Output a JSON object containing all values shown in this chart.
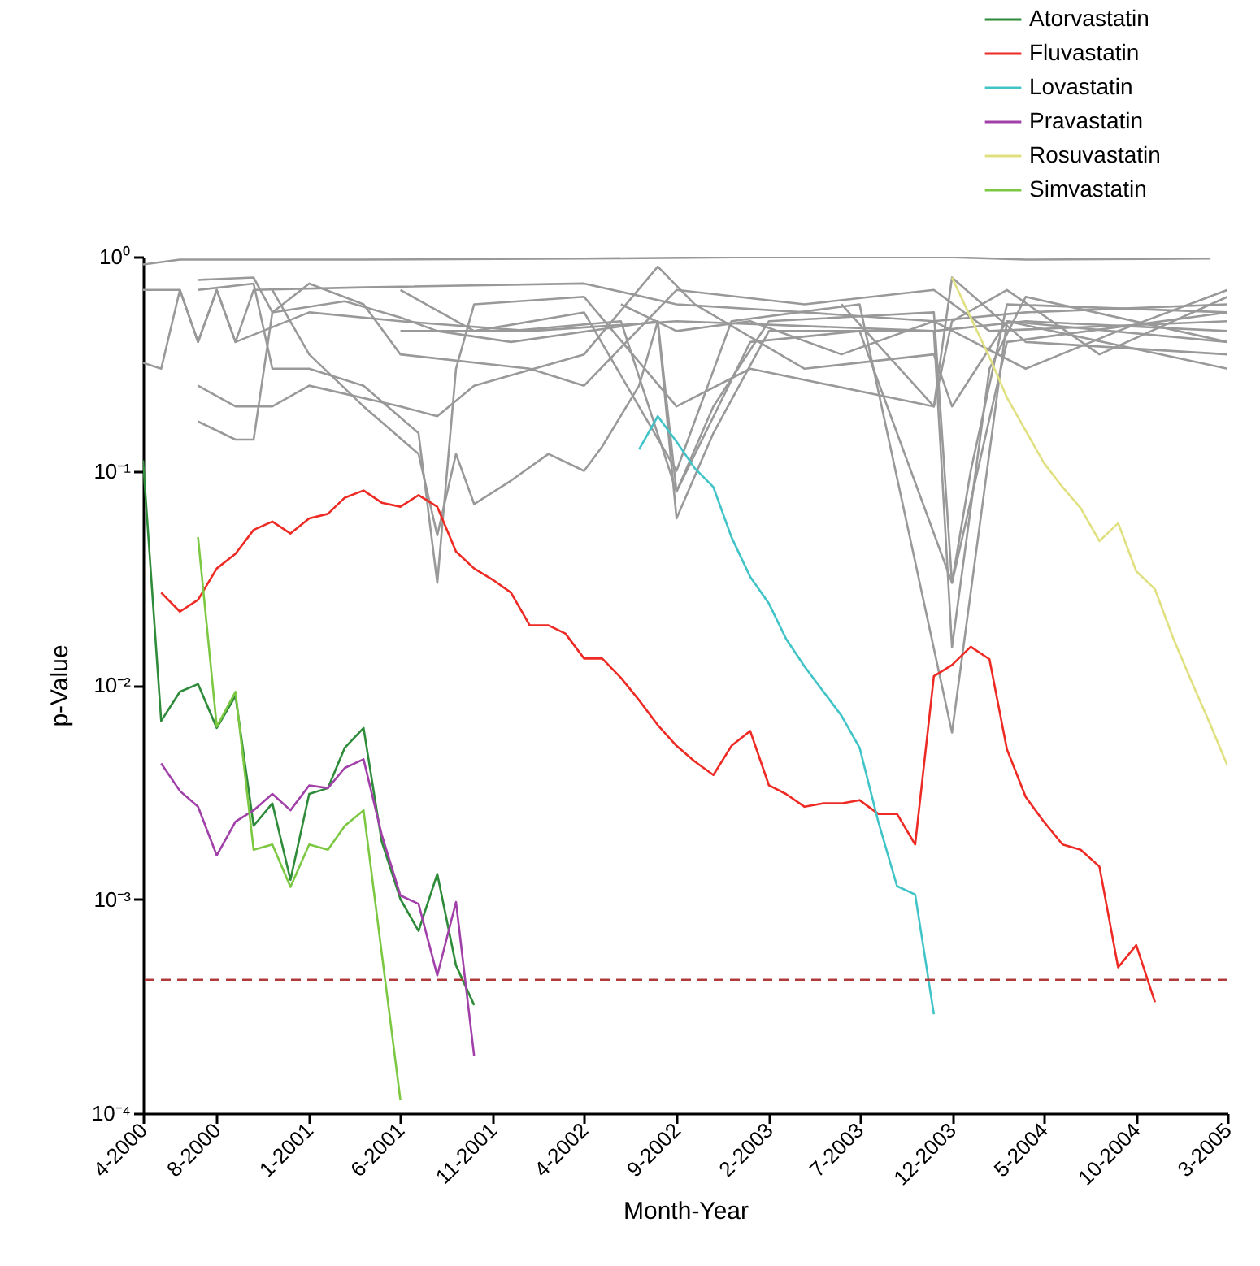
{
  "chart_data": {
    "type": "line",
    "xlabel": "Month-Year",
    "ylabel": "p-Value",
    "log": true,
    "grid": false,
    "legend": "top right",
    "marker": "none",
    "line_style": "solid",
    "xlim": [
      "2000-04",
      "2005-03"
    ],
    "xticks": [
      {
        "value": "2000-04",
        "label": "4-2000"
      },
      {
        "value": "2000-08",
        "label": "8-2000"
      },
      {
        "value": "2001-01",
        "label": "1-2001"
      },
      {
        "value": "2001-06",
        "label": "6-2001"
      },
      {
        "value": "2001-11",
        "label": "11-2001"
      },
      {
        "value": "2002-04",
        "label": "4-2002"
      },
      {
        "value": "2002-09",
        "label": "9-2002"
      },
      {
        "value": "2003-02",
        "label": "2-2003"
      },
      {
        "value": "2003-07",
        "label": "7-2003"
      },
      {
        "value": "2003-12",
        "label": "12-2003"
      },
      {
        "value": "2004-05",
        "label": "5-2004"
      },
      {
        "value": "2004-10",
        "label": "10-2004"
      },
      {
        "value": "2005-03",
        "label": "3-2005"
      }
    ],
    "ylim": [
      0.0001,
      1
    ],
    "yticks": [
      {
        "value": 0.0001,
        "label": "10⁻⁴"
      },
      {
        "value": 0.001,
        "label": "10⁻³"
      },
      {
        "value": 0.01,
        "label": "10⁻²"
      },
      {
        "value": 0.1,
        "label": "10⁻¹"
      },
      {
        "value": 1,
        "label": "10⁰"
      }
    ],
    "ref_lines": [
      {
        "axis": "y",
        "value": 0.00042,
        "color": "#b03a3a",
        "line_style": "dashed"
      }
    ],
    "series": [
      {
        "color": "#999999",
        "x": [
          "2000-04",
          "2000-06",
          "2001-04",
          "2002-04",
          "2003-04",
          "2003-11",
          "2004-04",
          "2005-02"
        ],
        "values": [
          0.92,
          0.97,
          0.97,
          0.98,
          1.0,
          1.0,
          0.97,
          0.98
        ]
      },
      {
        "color": "#999999",
        "x": [
          "2000-04",
          "2000-06",
          "2000-07",
          "2000-08",
          "2000-09",
          "2000-10",
          "2001-04",
          "2002-04",
          "2002-09",
          "2003-04",
          "2003-11",
          "2004-04",
          "2005-03"
        ],
        "values": [
          0.7,
          0.7,
          0.4,
          0.7,
          0.4,
          0.7,
          0.72,
          0.75,
          0.6,
          0.55,
          0.5,
          0.55,
          0.6
        ]
      },
      {
        "color": "#999999",
        "x": [
          "2000-04",
          "2000-05",
          "2000-06",
          "2000-07",
          "2000-08",
          "2000-09",
          "2001-01",
          "2001-06",
          "2002-01",
          "2002-09",
          "2003-11",
          "2004-04",
          "2005-03"
        ],
        "values": [
          0.32,
          0.3,
          0.7,
          0.4,
          0.7,
          0.4,
          0.55,
          0.5,
          0.45,
          0.5,
          0.45,
          0.5,
          0.45
        ]
      },
      {
        "color": "#999999",
        "x": [
          "2000-07",
          "2000-10",
          "2000-11",
          "2001-01",
          "2001-04",
          "2001-06",
          "2002-01",
          "2002-04",
          "2002-09",
          "2003-04",
          "2003-11",
          "2004-02",
          "2005-03"
        ],
        "values": [
          0.78,
          0.8,
          0.55,
          0.75,
          0.6,
          0.35,
          0.3,
          0.25,
          0.7,
          0.6,
          0.7,
          0.45,
          0.5
        ]
      },
      {
        "color": "#999999",
        "x": [
          "2000-07",
          "2000-10",
          "2000-11",
          "2001-01",
          "2001-04",
          "2001-07",
          "2001-08",
          "2001-09",
          "2001-10",
          "2002-04",
          "2002-09",
          "2003-01",
          "2003-11",
          "2003-12",
          "2004-04",
          "2005-03"
        ],
        "values": [
          0.7,
          0.75,
          0.3,
          0.3,
          0.25,
          0.15,
          0.03,
          0.3,
          0.6,
          0.65,
          0.2,
          0.3,
          0.2,
          0.8,
          0.4,
          0.35
        ]
      },
      {
        "color": "#999999",
        "x": [
          "2000-07",
          "2000-09",
          "2000-11",
          "2001-01",
          "2001-06",
          "2001-08",
          "2001-10",
          "2002-04",
          "2002-08",
          "2002-10",
          "2003-04",
          "2003-11",
          "2003-12",
          "2004-03",
          "2005-03"
        ],
        "values": [
          0.25,
          0.2,
          0.2,
          0.25,
          0.2,
          0.18,
          0.25,
          0.35,
          0.9,
          0.6,
          0.3,
          0.35,
          0.2,
          0.5,
          0.3
        ]
      },
      {
        "color": "#999999",
        "x": [
          "2000-07",
          "2000-09",
          "2000-10",
          "2000-11",
          "2001-03",
          "2001-06",
          "2001-08",
          "2001-12",
          "2002-08",
          "2002-09",
          "2002-11",
          "2003-02",
          "2003-11",
          "2003-12",
          "2004-01",
          "2004-03",
          "2005-03"
        ],
        "values": [
          0.17,
          0.14,
          0.14,
          0.55,
          0.62,
          0.52,
          0.45,
          0.4,
          0.5,
          0.08,
          0.2,
          0.5,
          0.55,
          0.03,
          0.1,
          0.6,
          0.55
        ]
      },
      {
        "color": "#999999",
        "x": [
          "2000-11",
          "2001-01",
          "2001-04",
          "2001-07",
          "2001-08",
          "2001-09",
          "2001-10",
          "2001-12",
          "2002-02",
          "2002-04",
          "2002-05",
          "2002-07",
          "2002-08",
          "2002-09",
          "2002-11",
          "2003-02",
          "2003-11",
          "2003-12",
          "2004-02",
          "2004-04",
          "2005-03"
        ],
        "values": [
          0.7,
          0.35,
          0.2,
          0.12,
          0.05,
          0.12,
          0.07,
          0.09,
          0.12,
          0.1,
          0.13,
          0.25,
          0.5,
          0.06,
          0.15,
          0.45,
          0.45,
          0.015,
          0.3,
          0.65,
          0.4
        ]
      },
      {
        "color": "#999999",
        "x": [
          "2001-06",
          "2001-10",
          "2002-04",
          "2002-09",
          "2002-12",
          "2003-07",
          "2003-12",
          "2004-03",
          "2005-03"
        ],
        "values": [
          0.7,
          0.45,
          0.55,
          0.1,
          0.5,
          0.6,
          0.006,
          0.5,
          0.4
        ]
      },
      {
        "color": "#999999",
        "x": [
          "2001-06",
          "2001-12",
          "2002-06",
          "2002-09",
          "2003-01",
          "2003-07",
          "2003-12",
          "2004-03",
          "2005-03"
        ],
        "values": [
          0.45,
          0.45,
          0.5,
          0.08,
          0.4,
          0.45,
          0.03,
          0.4,
          0.55
        ]
      },
      {
        "color": "#999999",
        "x": [
          "2002-06",
          "2002-09",
          "2003-01",
          "2003-06",
          "2003-11",
          "2004-04",
          "2004-09",
          "2005-03"
        ],
        "values": [
          0.6,
          0.45,
          0.5,
          0.35,
          0.5,
          0.3,
          0.45,
          0.7
        ]
      },
      {
        "color": "#999999",
        "x": [
          "2003-06",
          "2003-11",
          "2003-12",
          "2004-03",
          "2004-08",
          "2005-03"
        ],
        "values": [
          0.6,
          0.2,
          0.5,
          0.7,
          0.35,
          0.65
        ]
      },
      {
        "name": "Atorvastatin",
        "color": "#2e8b3a",
        "x": [
          "2000-04",
          "2000-05",
          "2000-06",
          "2000-07",
          "2000-08",
          "2000-09",
          "2000-10",
          "2000-11",
          "2000-12",
          "2001-01",
          "2001-02",
          "2001-03",
          "2001-04",
          "2001-05",
          "2001-06",
          "2001-07",
          "2001-08",
          "2001-09",
          "2001-10"
        ],
        "values": [
          0.112,
          0.0068,
          0.0093,
          0.0101,
          0.0063,
          0.0089,
          0.0022,
          0.0028,
          0.00123,
          0.0031,
          0.0033,
          0.0051,
          0.0063,
          0.00186,
          0.001,
          0.00071,
          0.00131,
          0.00049,
          0.00032
        ]
      },
      {
        "name": "Fluvastatin",
        "color": "#ee2a24",
        "x": [
          "2000-05",
          "2000-06",
          "2000-07",
          "2000-08",
          "2000-09",
          "2000-10",
          "2000-11",
          "2000-12",
          "2001-01",
          "2001-02",
          "2001-03",
          "2001-04",
          "2001-05",
          "2001-06",
          "2001-07",
          "2001-08",
          "2001-09",
          "2001-10",
          "2001-11",
          "2001-12",
          "2002-01",
          "2002-02",
          "2002-03",
          "2002-04",
          "2002-05",
          "2002-06",
          "2002-07",
          "2002-08",
          "2002-09",
          "2002-10",
          "2002-11",
          "2002-12",
          "2003-01",
          "2003-02",
          "2003-03",
          "2003-04",
          "2003-05",
          "2003-06",
          "2003-07",
          "2003-08",
          "2003-09",
          "2003-10",
          "2003-11",
          "2003-12",
          "2004-01",
          "2004-02",
          "2004-03",
          "2004-04",
          "2004-05",
          "2004-06",
          "2004-07",
          "2004-08",
          "2004-09",
          "2004-10",
          "2004-11"
        ],
        "values": [
          0.027,
          0.022,
          0.025,
          0.035,
          0.041,
          0.053,
          0.058,
          0.051,
          0.06,
          0.063,
          0.075,
          0.081,
          0.071,
          0.068,
          0.077,
          0.068,
          0.042,
          0.035,
          0.031,
          0.027,
          0.019,
          0.019,
          0.0174,
          0.0133,
          0.0133,
          0.0108,
          0.0085,
          0.0065,
          0.0052,
          0.0044,
          0.0038,
          0.0052,
          0.0061,
          0.0034,
          0.0031,
          0.0027,
          0.0028,
          0.0028,
          0.0029,
          0.0025,
          0.0025,
          0.0018,
          0.011,
          0.0124,
          0.0151,
          0.0132,
          0.005,
          0.003,
          0.0023,
          0.0018,
          0.0017,
          0.00142,
          0.00048,
          0.00061,
          0.00033
        ]
      },
      {
        "name": "Lovastatin",
        "color": "#40c4c8",
        "x": [
          "2002-07",
          "2002-08",
          "2002-09",
          "2002-10",
          "2002-11",
          "2002-12",
          "2003-01",
          "2003-02",
          "2003-03",
          "2003-04",
          "2003-05",
          "2003-06",
          "2003-07",
          "2003-08",
          "2003-09",
          "2003-10",
          "2003-11"
        ],
        "values": [
          0.126,
          0.18,
          0.137,
          0.103,
          0.084,
          0.049,
          0.032,
          0.024,
          0.0165,
          0.0122,
          0.0094,
          0.0072,
          0.0051,
          0.0023,
          0.00115,
          0.00105,
          0.00029
        ]
      },
      {
        "name": "Pravastatin",
        "color": "#a040a8",
        "x": [
          "2000-05",
          "2000-06",
          "2000-07",
          "2000-08",
          "2000-09",
          "2000-10",
          "2000-11",
          "2000-12",
          "2001-01",
          "2001-02",
          "2001-03",
          "2001-04",
          "2001-05",
          "2001-06",
          "2001-07",
          "2001-08",
          "2001-09",
          "2001-10"
        ],
        "values": [
          0.0043,
          0.0032,
          0.0027,
          0.0016,
          0.0023,
          0.0026,
          0.0031,
          0.0026,
          0.0034,
          0.0033,
          0.0041,
          0.0045,
          0.002,
          0.00104,
          0.00095,
          0.00044,
          0.00097,
          0.000185
        ]
      },
      {
        "name": "Rosuvastatin",
        "color": "#e0e080",
        "x": [
          "2003-12",
          "2004-01",
          "2004-02",
          "2004-03",
          "2004-04",
          "2004-05",
          "2004-06",
          "2004-07",
          "2004-08",
          "2004-09",
          "2004-10",
          "2004-11",
          "2004-12",
          "2005-01",
          "2005-02",
          "2005-03"
        ],
        "values": [
          0.8,
          0.52,
          0.34,
          0.22,
          0.154,
          0.109,
          0.084,
          0.067,
          0.047,
          0.057,
          0.034,
          0.028,
          0.0166,
          0.0103,
          0.0065,
          0.0042
        ]
      },
      {
        "name": "Simvastatin",
        "color": "#7cc843",
        "x": [
          "2000-07",
          "2000-08",
          "2000-09",
          "2000-10",
          "2000-11",
          "2000-12",
          "2001-01",
          "2001-02",
          "2001-03",
          "2001-04",
          "2001-06"
        ],
        "values": [
          0.049,
          0.0064,
          0.0093,
          0.0017,
          0.0018,
          0.00114,
          0.0018,
          0.0017,
          0.0022,
          0.0026,
          0.000115
        ]
      }
    ]
  }
}
